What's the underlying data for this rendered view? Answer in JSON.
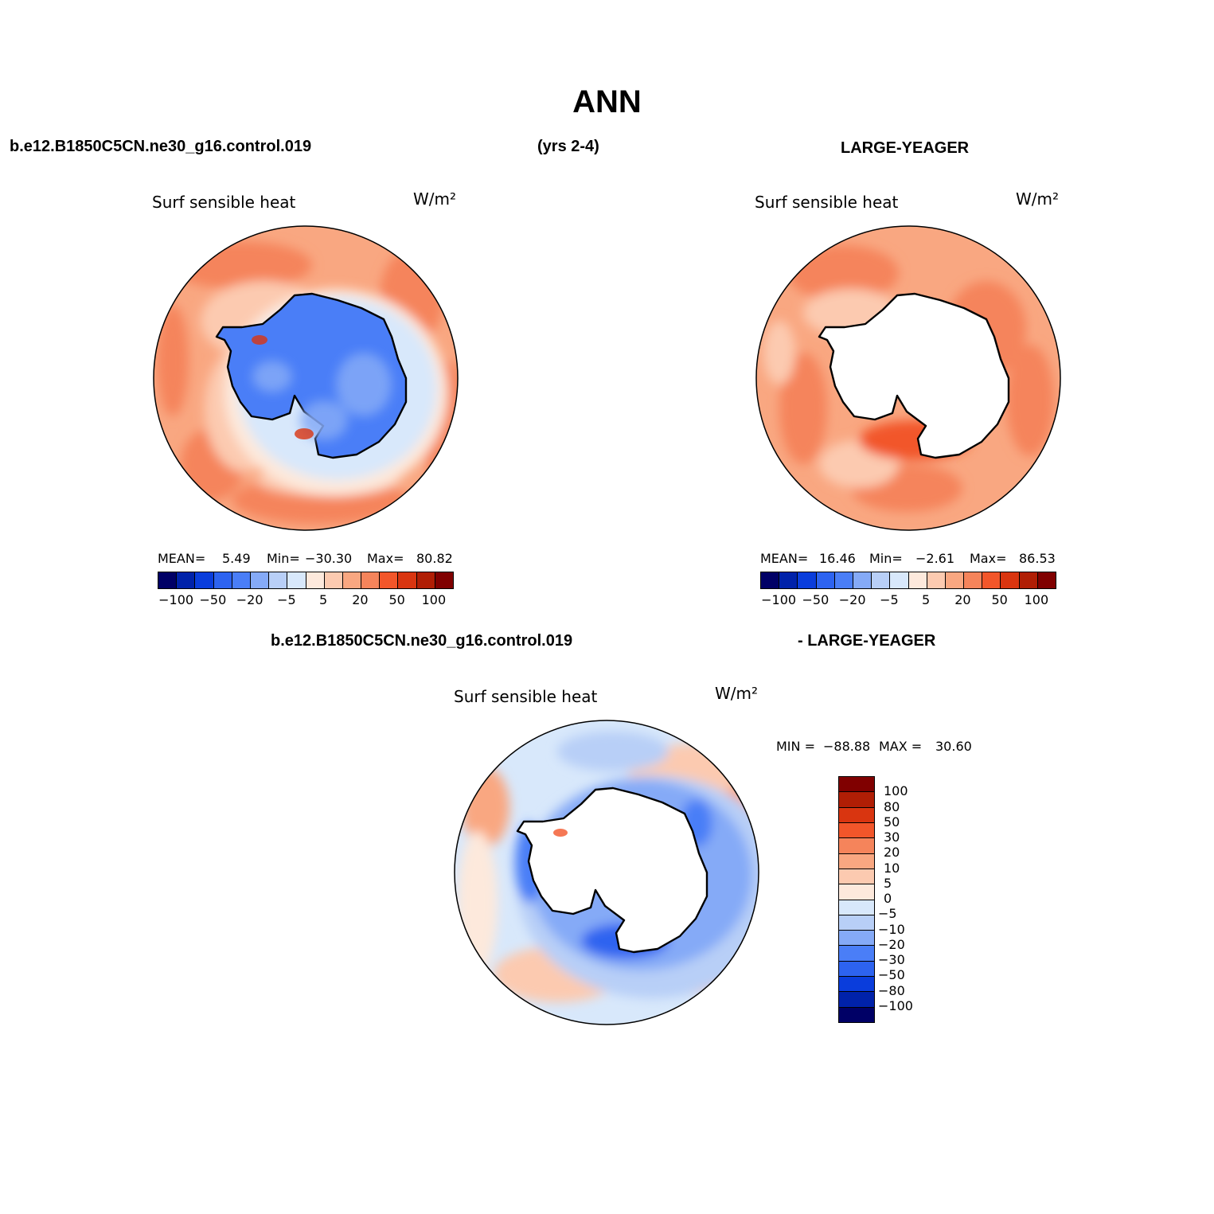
{
  "title": "ANN",
  "header": {
    "case_name": "b.e12.B1850C5CN.ne30_g16.control.019",
    "years": "(yrs 2-4)",
    "obs_name": "LARGE-YEAGER"
  },
  "diff_header": {
    "left": "b.e12.B1850C5CN.ne30_g16.control.019",
    "right": "- LARGE-YEAGER"
  },
  "panels": {
    "model": {
      "variable": "Surf  sensible  heat",
      "units": "W/m²",
      "mean_label": "MEAN=",
      "mean": "5.49",
      "min_label": "Min=",
      "min": "−30.30",
      "max_label": "Max=",
      "max": "80.82"
    },
    "obs": {
      "variable": "Surf  sensible  heat",
      "units": "W/m²",
      "mean_label": "MEAN=",
      "mean": "16.46",
      "min_label": "Min=",
      "min": "−2.61",
      "max_label": "Max=",
      "max": "86.53"
    },
    "diff": {
      "variable": "Surf  sensible  heat",
      "units": "W/m²",
      "min_label": "MIN =",
      "min": "−88.88",
      "max_label": "MAX =",
      "max": "30.60"
    }
  },
  "colorbar_horizontal": {
    "colors": [
      "#000066",
      "#0022aa",
      "#0a3ddc",
      "#2d63f0",
      "#4a7ef7",
      "#85aaf7",
      "#b8cff7",
      "#d8e8fb",
      "#fde9dc",
      "#fccab0",
      "#f9a781",
      "#f5845b",
      "#f2562a",
      "#d93510",
      "#b01e05",
      "#800000"
    ],
    "tick_labels": [
      "−100",
      "−50",
      "−20",
      "−5",
      "5",
      "20",
      "50",
      "100"
    ]
  },
  "colorbar_vertical": {
    "colors": [
      "#800000",
      "#b01e05",
      "#d93510",
      "#f2562a",
      "#f5845b",
      "#f9a781",
      "#fccab0",
      "#fde9dc",
      "#d8e8fb",
      "#b8cff7",
      "#85aaf7",
      "#4a7ef7",
      "#2d63f0",
      "#0a3ddc",
      "#0022aa",
      "#000066"
    ],
    "tick_labels": [
      "100",
      "80",
      "50",
      "30",
      "20",
      "10",
      "5",
      "0",
      "−5",
      "−10",
      "−20",
      "−30",
      "−50",
      "−80",
      "−100"
    ]
  },
  "map_colors": {
    "land_model": "#4a7ef7",
    "land_model_alt": "#85aaf7",
    "land_obs": "#ffffff",
    "ocean_light": "#fccab0",
    "ocean_mid": "#f9a781",
    "ocean_strong": "#f5845b",
    "ocean_hot": "#f2562a",
    "near_zero_pos": "#fde9dc",
    "near_zero_neg": "#d8e8fb",
    "neg_light": "#b8cff7",
    "neg_mid": "#85aaf7",
    "neg_strong": "#4a7ef7",
    "neg_deep": "#2d63f0",
    "coast": "#000000"
  }
}
